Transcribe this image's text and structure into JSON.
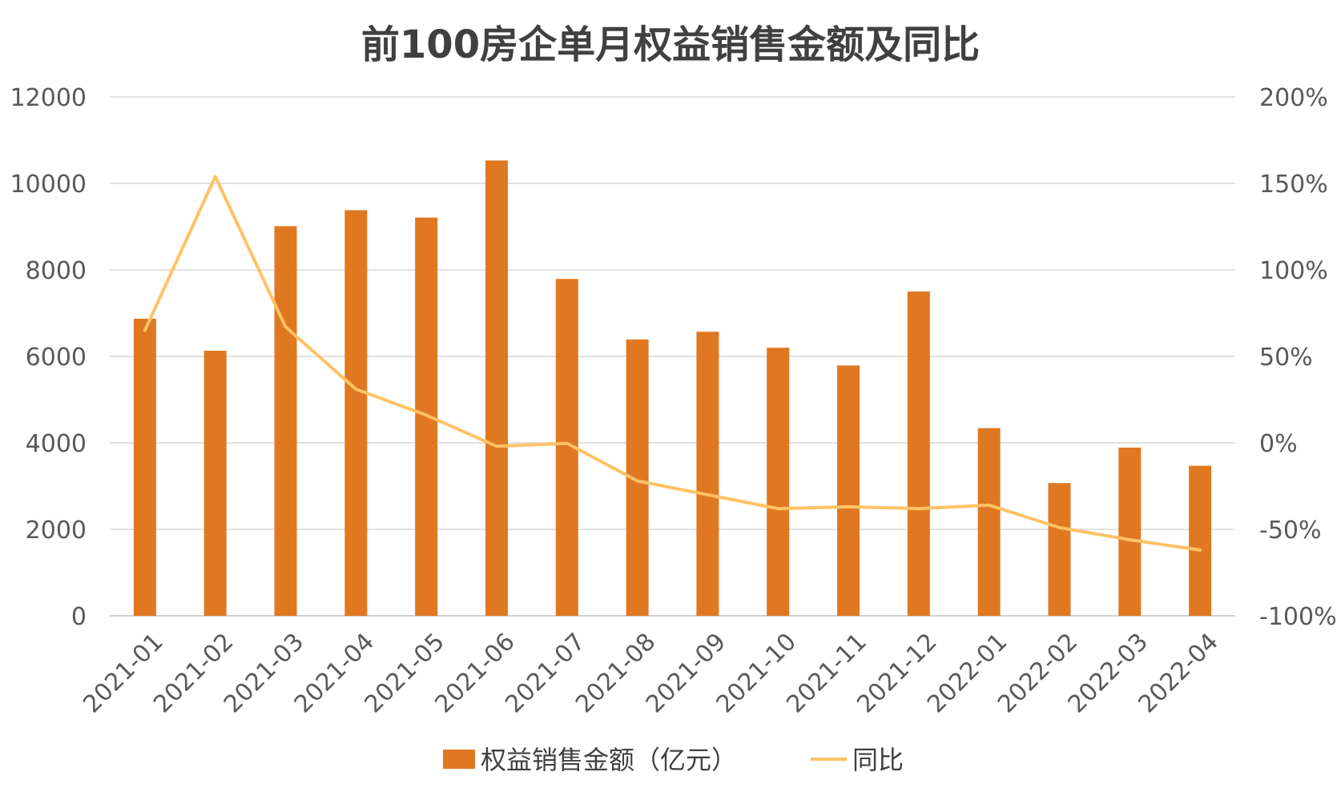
{
  "chart_data": {
    "type": "bar",
    "title": "前100房企单月权益销售金额及同比",
    "categories": [
      "2021-01",
      "2021-02",
      "2021-03",
      "2021-04",
      "2021-05",
      "2021-06",
      "2021-07",
      "2021-08",
      "2021-09",
      "2021-10",
      "2021-11",
      "2021-12",
      "2022-01",
      "2022-02",
      "2022-03",
      "2022-04"
    ],
    "series": [
      {
        "name": "权益销售金额（亿元）",
        "type": "bar",
        "axis": "left",
        "color": "#E07822",
        "values": [
          6870,
          6130,
          9010,
          9380,
          9210,
          10530,
          7790,
          6390,
          6570,
          6200,
          5790,
          7500,
          4340,
          3070,
          3890,
          3470
        ]
      },
      {
        "name": "同比",
        "type": "line",
        "axis": "right",
        "color": "#FFC264",
        "values": [
          0.65,
          1.54,
          0.67,
          0.31,
          0.16,
          -0.02,
          -0.003,
          -0.22,
          -0.3,
          -0.38,
          -0.37,
          -0.38,
          -0.36,
          -0.49,
          -0.56,
          -0.62
        ]
      }
    ],
    "y_left": {
      "min": 0,
      "max": 12000,
      "ticks": [
        "0",
        "2000",
        "4000",
        "6000",
        "8000",
        "10000",
        "12000"
      ]
    },
    "y_right": {
      "min": -1,
      "max": 2,
      "ticks": [
        "-100%",
        "-50%",
        "0%",
        "50%",
        "100%",
        "150%",
        "200%"
      ]
    },
    "grid": true,
    "legend_position": "bottom"
  }
}
